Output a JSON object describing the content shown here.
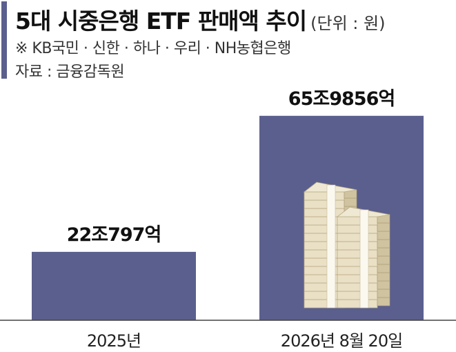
{
  "header": {
    "title": "5대 시중은행 ETF 판매액 추이",
    "unit": "(단위 : 원)",
    "subtitle": "※ KB국민 · 신한 · 하나 · 우리 · NH농협은행",
    "source": "자료 : 금융감독원"
  },
  "colors": {
    "bar": "#5b5f8e",
    "accent": "#5b5f8e",
    "baseline": "#444444"
  },
  "chart_data": {
    "type": "bar",
    "title": "5대 시중은행 ETF 판매액 추이",
    "unit": "(단위 : 원)",
    "categories": [
      "2025년",
      "2026년 8월 20일"
    ],
    "values": [
      220797,
      659856
    ],
    "value_unit": "억",
    "data_labels": [
      "22조797억",
      "65조9856억"
    ],
    "ylim": [
      0,
      900000
    ],
    "grid": false,
    "legend": "none",
    "decoration": "money-stack-illustration"
  }
}
